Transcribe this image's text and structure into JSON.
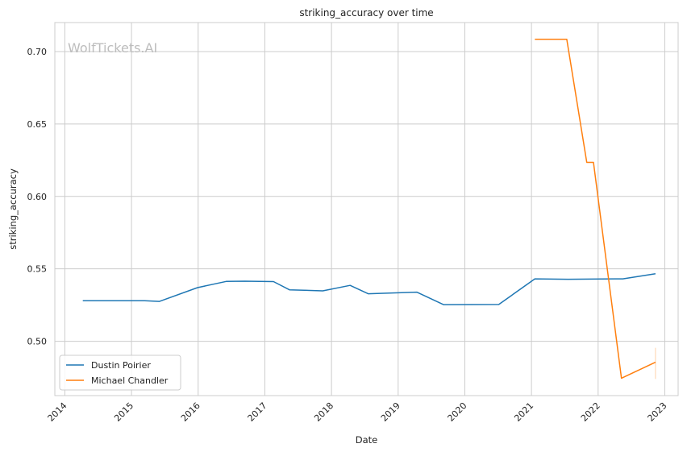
{
  "chart_data": {
    "type": "line",
    "title": "striking_accuracy over time",
    "xlabel": "Date",
    "ylabel": "striking_accuracy",
    "watermark": "WolfTickets.AI",
    "x_ticks": [
      "2014",
      "2015",
      "2016",
      "2017",
      "2018",
      "2019",
      "2020",
      "2021",
      "2022",
      "2023"
    ],
    "y_ticks": [
      "0.50",
      "0.55",
      "0.60",
      "0.65",
      "0.70"
    ],
    "xlim": [
      2013.85,
      2023.2
    ],
    "ylim": [
      0.4625,
      0.72
    ],
    "grid": true,
    "legend_position": "lower-left",
    "series": [
      {
        "name": "Dustin Poirier",
        "color": "#1f77b4",
        "points": [
          [
            2014.27,
            0.528
          ],
          [
            2015.2,
            0.528
          ],
          [
            2015.42,
            0.5275
          ],
          [
            2015.99,
            0.537
          ],
          [
            2016.42,
            0.5413
          ],
          [
            2016.7,
            0.5415
          ],
          [
            2017.13,
            0.5412
          ],
          [
            2017.37,
            0.5355
          ],
          [
            2017.87,
            0.5348
          ],
          [
            2018.28,
            0.5386
          ],
          [
            2018.55,
            0.5328
          ],
          [
            2019.05,
            0.5335
          ],
          [
            2019.28,
            0.5339
          ],
          [
            2019.68,
            0.5253
          ],
          [
            2020.51,
            0.5254
          ],
          [
            2021.05,
            0.5431
          ],
          [
            2021.55,
            0.5428
          ],
          [
            2022.05,
            0.543
          ],
          [
            2022.37,
            0.5431
          ],
          [
            2022.86,
            0.5466
          ]
        ]
      },
      {
        "name": "Michael Chandler",
        "color": "#ff7f0e",
        "points": [
          [
            2021.05,
            0.7085
          ],
          [
            2021.53,
            0.7085
          ],
          [
            2021.83,
            0.6235
          ],
          [
            2021.93,
            0.6235
          ],
          [
            2022.35,
            0.4745
          ],
          [
            2022.86,
            0.4855
          ]
        ],
        "error_bar": {
          "x": 2022.86,
          "low": 0.474,
          "high": 0.4955
        }
      }
    ]
  }
}
